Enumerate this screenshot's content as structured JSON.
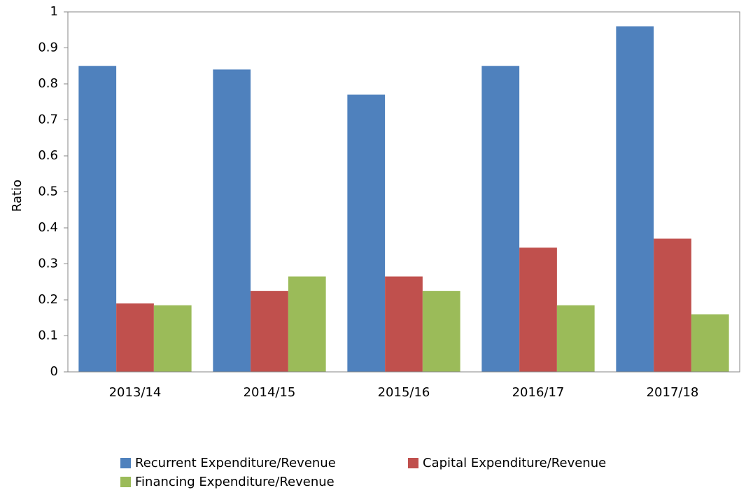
{
  "chart_data": {
    "type": "bar",
    "ylabel": "Ratio",
    "categories": [
      "2013/14",
      "2014/15",
      "2015/16",
      "2016/17",
      "2017/18"
    ],
    "series": [
      {
        "name": "Recurrent Expenditure/Revenue",
        "color": "#4f81bd",
        "values": [
          0.85,
          0.84,
          0.77,
          0.85,
          0.96
        ]
      },
      {
        "name": "Capital Expenditure/Revenue",
        "color": "#c0504d",
        "values": [
          0.19,
          0.225,
          0.265,
          0.345,
          0.37
        ]
      },
      {
        "name": "Financing Expenditure/Revenue",
        "color": "#9bbb59",
        "values": [
          0.185,
          0.265,
          0.225,
          0.185,
          0.16
        ]
      }
    ],
    "ylim": [
      0,
      1
    ],
    "yticks": [
      0,
      0.1,
      0.2,
      0.3,
      0.4,
      0.5,
      0.6,
      0.7,
      0.8,
      0.9,
      1
    ],
    "grid": false,
    "legend": "bottom"
  }
}
